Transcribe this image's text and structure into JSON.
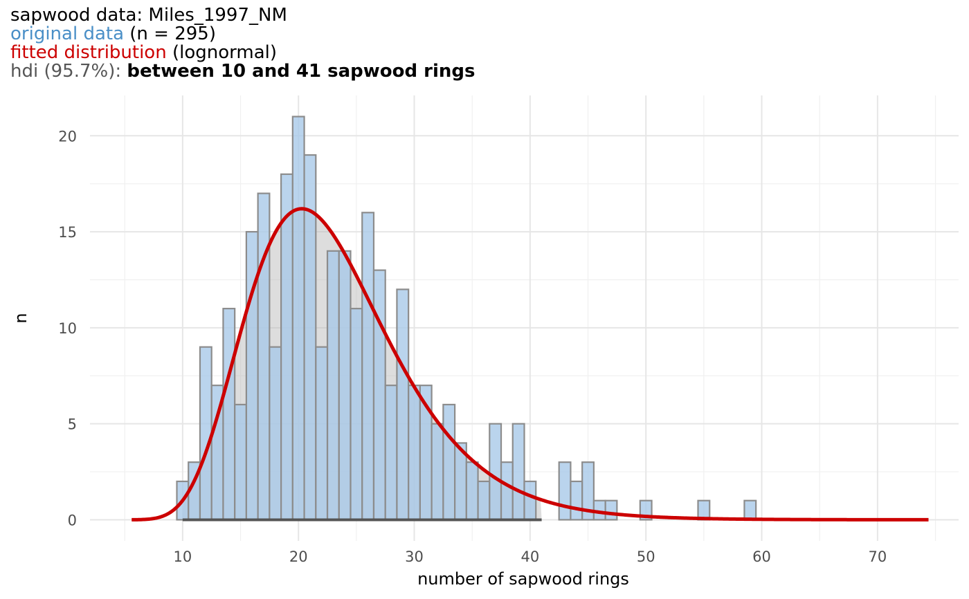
{
  "chart_data": {
    "type": "bar",
    "title_lines": {
      "line1": "sapwood data: Miles_1997_NM",
      "line2_colored": "original data",
      "line2_rest": " (n = 295)",
      "line3_colored": "fitted distribution",
      "line3_rest": " (lognormal)",
      "line4_prefix": "hdi (95.7%):",
      "line4_bold": "between 10 and 41 sapwood rings"
    },
    "xlabel": "number of sapwood rings",
    "ylabel": "n",
    "xlim": [
      2,
      77
    ],
    "ylim": [
      -1.1,
      22.1
    ],
    "x_ticks": [
      "10",
      "20",
      "30",
      "40",
      "50",
      "60",
      "70"
    ],
    "y_ticks": [
      "0",
      "5",
      "10",
      "15",
      "20"
    ],
    "grid": true,
    "series": [
      {
        "name": "original data",
        "color": "#a9c9e8",
        "x": [
          10,
          11,
          12,
          13,
          14,
          15,
          16,
          17,
          18,
          19,
          20,
          21,
          22,
          23,
          24,
          25,
          26,
          27,
          28,
          29,
          30,
          31,
          32,
          33,
          34,
          35,
          36,
          37,
          38,
          39,
          40,
          43,
          44,
          45,
          46,
          47,
          50,
          55,
          59
        ],
        "values": [
          2,
          3,
          9,
          7,
          11,
          6,
          15,
          17,
          9,
          18,
          21,
          19,
          9,
          14,
          14,
          11,
          16,
          13,
          7,
          12,
          7,
          7,
          5,
          6,
          4,
          3,
          2,
          5,
          3,
          5,
          2,
          3,
          2,
          3,
          1,
          1,
          1,
          1,
          1
        ]
      },
      {
        "name": "fitted distribution",
        "distribution": "lognormal",
        "color": "#cc0000",
        "meanlog": 3.1,
        "sdlog": 0.3,
        "peak": 16.2,
        "x_range": [
          5.6,
          74.4
        ]
      }
    ],
    "hdi": {
      "lower": 10,
      "upper": 41,
      "percent": 95.7
    }
  }
}
